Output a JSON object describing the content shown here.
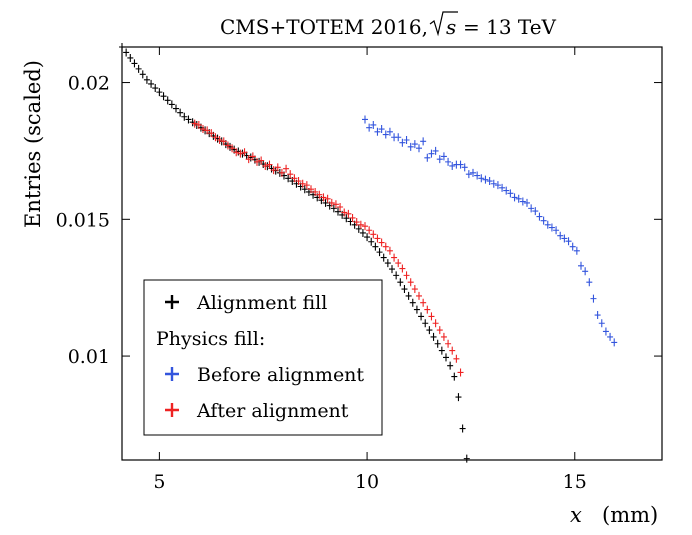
{
  "chart_data": {
    "type": "scatter",
    "title": "CMS+TOTEM 2016,",
    "title_math": {
      "sqrt": "s",
      "rest": "= 13 TeV"
    },
    "xlabel": "x",
    "xunit": "(mm)",
    "ylabel": "Entries (scaled)",
    "xlim": [
      4.1,
      17.1
    ],
    "ylim": [
      0.0062,
      0.0213
    ],
    "xticks": [
      {
        "value": 5,
        "label": "5"
      },
      {
        "value": 10,
        "label": "10"
      },
      {
        "value": 15,
        "label": "15"
      }
    ],
    "yticks": [
      {
        "value": 0.01,
        "label": "0.01"
      },
      {
        "value": 0.015,
        "label": "0.015"
      },
      {
        "value": 0.02,
        "label": "0.02"
      }
    ],
    "legend": {
      "position": "bottom-left",
      "entries": [
        {
          "label": "Alignment fill",
          "color": "#000000",
          "marker": true
        },
        {
          "label": "Physics fill:",
          "marker": false
        },
        {
          "label": "Before alignment",
          "color": "#3355dd",
          "marker": true
        },
        {
          "label": "After alignment",
          "color": "#ee2222",
          "marker": true
        }
      ]
    },
    "series": [
      {
        "name": "Alignment fill",
        "color": "#000000",
        "x": [
          4.1,
          4.2,
          4.3,
          4.4,
          4.5,
          4.6,
          4.7,
          4.8,
          4.9,
          5.0,
          5.1,
          5.2,
          5.3,
          5.4,
          5.5,
          5.6,
          5.7,
          5.8,
          5.9,
          6.0,
          6.1,
          6.2,
          6.3,
          6.4,
          6.5,
          6.6,
          6.7,
          6.8,
          6.9,
          7.0,
          7.1,
          7.2,
          7.3,
          7.4,
          7.5,
          7.6,
          7.7,
          7.8,
          7.9,
          8.0,
          8.1,
          8.2,
          8.3,
          8.4,
          8.5,
          8.6,
          8.7,
          8.8,
          8.9,
          9.0,
          9.1,
          9.2,
          9.3,
          9.4,
          9.5,
          9.6,
          9.7,
          9.8,
          9.9,
          10.0,
          10.1,
          10.2,
          10.3,
          10.4,
          10.5,
          10.6,
          10.7,
          10.8,
          10.9,
          11.0,
          11.1,
          11.2,
          11.3,
          11.4,
          11.5,
          11.6,
          11.7,
          11.8,
          11.9,
          12.0,
          12.1,
          12.2,
          12.3,
          12.4
        ],
        "y": [
          0.0213,
          0.0211,
          0.0209,
          0.0207,
          0.0205,
          0.0203,
          0.0201,
          0.01995,
          0.0198,
          0.01965,
          0.0195,
          0.01935,
          0.0192,
          0.01905,
          0.0189,
          0.01875,
          0.01865,
          0.01855,
          0.01845,
          0.01835,
          0.01825,
          0.01815,
          0.01805,
          0.01795,
          0.01785,
          0.01775,
          0.01765,
          0.01755,
          0.01748,
          0.0174,
          0.01733,
          0.01726,
          0.01718,
          0.0171,
          0.01702,
          0.01694,
          0.01686,
          0.01678,
          0.0167,
          0.0166,
          0.0165,
          0.0164,
          0.0163,
          0.0162,
          0.0161,
          0.016,
          0.0159,
          0.0158,
          0.0157,
          0.0156,
          0.0155,
          0.0154,
          0.01528,
          0.01516,
          0.01504,
          0.01492,
          0.0148,
          0.01465,
          0.0145,
          0.01435,
          0.01418,
          0.014,
          0.0138,
          0.0136,
          0.0134,
          0.01318,
          0.01295,
          0.0127,
          0.01245,
          0.0122,
          0.01195,
          0.0117,
          0.01145,
          0.0112,
          0.01095,
          0.0107,
          0.01045,
          0.0102,
          0.00995,
          0.00965,
          0.00925,
          0.0085,
          0.00735,
          0.00625
        ]
      },
      {
        "name": "Before alignment",
        "color": "#3355dd",
        "x": [
          9.95,
          10.05,
          10.15,
          10.25,
          10.35,
          10.45,
          10.55,
          10.65,
          10.75,
          10.85,
          10.95,
          11.05,
          11.15,
          11.25,
          11.35,
          11.45,
          11.55,
          11.65,
          11.75,
          11.85,
          11.95,
          12.05,
          12.15,
          12.25,
          12.35,
          12.45,
          12.55,
          12.65,
          12.75,
          12.85,
          12.95,
          13.05,
          13.15,
          13.25,
          13.35,
          13.45,
          13.55,
          13.65,
          13.75,
          13.85,
          13.95,
          14.05,
          14.15,
          14.25,
          14.35,
          14.45,
          14.55,
          14.65,
          14.75,
          14.85,
          14.95,
          15.05,
          15.15,
          15.25,
          15.35,
          15.45,
          15.55,
          15.65,
          15.75,
          15.85,
          15.95
        ],
        "y": [
          0.01865,
          0.01835,
          0.01845,
          0.0182,
          0.0183,
          0.0181,
          0.0182,
          0.018,
          0.018,
          0.0178,
          0.0179,
          0.01765,
          0.01775,
          0.0176,
          0.01785,
          0.01725,
          0.0174,
          0.0175,
          0.0172,
          0.0173,
          0.0171,
          0.01695,
          0.017,
          0.017,
          0.0169,
          0.01665,
          0.0167,
          0.0166,
          0.0165,
          0.01645,
          0.0164,
          0.0163,
          0.01625,
          0.01615,
          0.01605,
          0.01595,
          0.0158,
          0.01575,
          0.01565,
          0.0156,
          0.0154,
          0.0153,
          0.0151,
          0.01495,
          0.0148,
          0.0147,
          0.0146,
          0.0144,
          0.0143,
          0.0142,
          0.014,
          0.01385,
          0.0133,
          0.0131,
          0.0127,
          0.0121,
          0.0115,
          0.0112,
          0.0109,
          0.0107,
          0.0105
        ]
      },
      {
        "name": "After alignment",
        "color": "#ee2222",
        "x": [
          5.85,
          5.95,
          6.05,
          6.15,
          6.25,
          6.35,
          6.45,
          6.55,
          6.65,
          6.75,
          6.85,
          6.95,
          7.05,
          7.15,
          7.25,
          7.35,
          7.45,
          7.55,
          7.65,
          7.75,
          7.85,
          7.95,
          8.05,
          8.15,
          8.25,
          8.35,
          8.45,
          8.55,
          8.65,
          8.75,
          8.85,
          8.95,
          9.05,
          9.15,
          9.25,
          9.35,
          9.45,
          9.55,
          9.65,
          9.75,
          9.85,
          9.95,
          10.05,
          10.15,
          10.25,
          10.35,
          10.45,
          10.55,
          10.65,
          10.75,
          10.85,
          10.95,
          11.05,
          11.15,
          11.25,
          11.35,
          11.45,
          11.55,
          11.65,
          11.75,
          11.85,
          11.95,
          12.05,
          12.15,
          12.25
        ],
        "y": [
          0.0185,
          0.01845,
          0.0183,
          0.01825,
          0.01815,
          0.018,
          0.0179,
          0.01785,
          0.0177,
          0.0176,
          0.01745,
          0.0174,
          0.01745,
          0.0172,
          0.0173,
          0.0171,
          0.01715,
          0.01695,
          0.017,
          0.0168,
          0.0169,
          0.0167,
          0.01685,
          0.01665,
          0.0165,
          0.0164,
          0.0163,
          0.01625,
          0.0161,
          0.016,
          0.0159,
          0.0158,
          0.01575,
          0.0156,
          0.01555,
          0.01545,
          0.01525,
          0.0152,
          0.01505,
          0.0149,
          0.0148,
          0.01475,
          0.0146,
          0.01445,
          0.0143,
          0.01415,
          0.014,
          0.01385,
          0.0136,
          0.0134,
          0.0132,
          0.01295,
          0.0127,
          0.01245,
          0.0122,
          0.01195,
          0.0117,
          0.01145,
          0.0112,
          0.01095,
          0.0107,
          0.01045,
          0.0102,
          0.0099,
          0.0094
        ]
      }
    ]
  }
}
